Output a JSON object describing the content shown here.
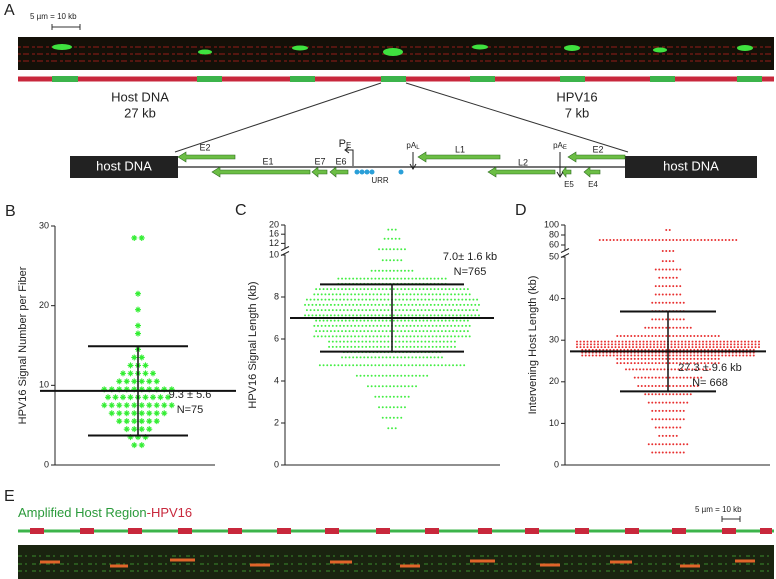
{
  "panel_a": {
    "letter": "A",
    "scale_bar": "5 µm = 10 kb",
    "host_label": "Host DNA",
    "host_length": "27 kb",
    "hpv_label": "HPV16",
    "hpv_length": "7 kb",
    "gene_map": {
      "host_left": "host DNA",
      "host_right": "host DNA",
      "e2_left": "E2",
      "e1": "E1",
      "e7": "E7",
      "e6": "E6",
      "pe": {
        "text": "P",
        "sub": "E"
      },
      "urr": "URR",
      "pal": {
        "text": "pA",
        "sub": "L"
      },
      "l1": "L1",
      "l2": "L2",
      "pae": {
        "text": "pA",
        "sub": "E"
      },
      "e2_right": "E2",
      "e5": "E5",
      "e4": "E4"
    }
  },
  "chart_data": [
    {
      "type": "swarm",
      "panel_label": "B",
      "ylabel": "HPV16 Signal Number per Fiber",
      "color": "#33ee33",
      "marker": "asterisk",
      "ylim": [
        0,
        30
      ],
      "yticks": [
        0,
        10,
        20,
        30
      ],
      "bins": [
        2,
        3,
        4,
        5,
        6,
        7,
        8,
        9,
        10,
        11,
        12,
        13,
        14,
        15,
        16,
        17,
        18,
        19,
        20,
        21,
        22,
        23,
        24,
        25,
        26,
        27,
        28,
        29,
        30
      ],
      "counts": [
        2,
        3,
        4,
        6,
        8,
        10,
        9,
        10,
        6,
        5,
        3,
        2,
        1,
        0,
        1,
        1,
        0,
        1,
        0,
        1,
        0,
        0,
        0,
        0,
        0,
        0,
        2,
        0
      ],
      "mean": 9.3,
      "sd": 5.6,
      "annotations": [
        "9.3 ± 5.6",
        "N=75"
      ]
    },
    {
      "type": "swarm",
      "panel_label": "C",
      "ylabel": "HPV16 Signal Length (kb)",
      "color": "#44ee44",
      "marker": "dot",
      "ylim": [
        0,
        20
      ],
      "axis_break": 10,
      "yticks": [
        0,
        2,
        4,
        6,
        8,
        10,
        12,
        16,
        20
      ],
      "bins": [
        1.5,
        2,
        2.5,
        3,
        3.5,
        4,
        4.5,
        5,
        5.5,
        6,
        6.5,
        7,
        7.5,
        8,
        8.5,
        9,
        9.5,
        10,
        12,
        16,
        20
      ],
      "counts": [
        3,
        6,
        8,
        10,
        14,
        20,
        40,
        55,
        70,
        85,
        85,
        95,
        95,
        85,
        60,
        12,
        6,
        8,
        5,
        3
      ],
      "mean": 7.0,
      "sd": 1.6,
      "annotations": [
        "7.0± 1.6 kb",
        "N=765"
      ]
    },
    {
      "type": "swarm",
      "panel_label": "D",
      "ylabel": "Intervening Host Length (kb)",
      "color": "#e83030",
      "marker": "dot",
      "ylim": [
        0,
        100
      ],
      "axis_break": 50,
      "yticks": [
        0,
        10,
        20,
        30,
        40,
        50,
        60,
        80,
        100
      ],
      "bins": [
        2,
        4,
        6,
        8,
        10,
        12,
        14,
        16,
        18,
        20,
        22,
        24,
        26,
        28,
        30,
        32,
        34,
        36,
        38,
        40,
        42,
        44,
        46,
        48,
        50,
        60,
        80,
        100
      ],
      "counts": [
        10,
        12,
        6,
        8,
        10,
        10,
        12,
        14,
        18,
        20,
        25,
        60,
        150,
        159,
        30,
        14,
        10,
        10,
        10,
        8,
        8,
        6,
        8,
        4,
        4,
        40,
        2
      ],
      "mean": 27.3,
      "sd": 9.6,
      "annotations": [
        "27.3 ± 9.6 kb",
        "N= 668"
      ]
    }
  ],
  "panel_e": {
    "letter": "E",
    "title_green": "Amplified Host Region",
    "title_red": "-HPV16",
    "scale_bar": "5 µm = 10 kb"
  }
}
